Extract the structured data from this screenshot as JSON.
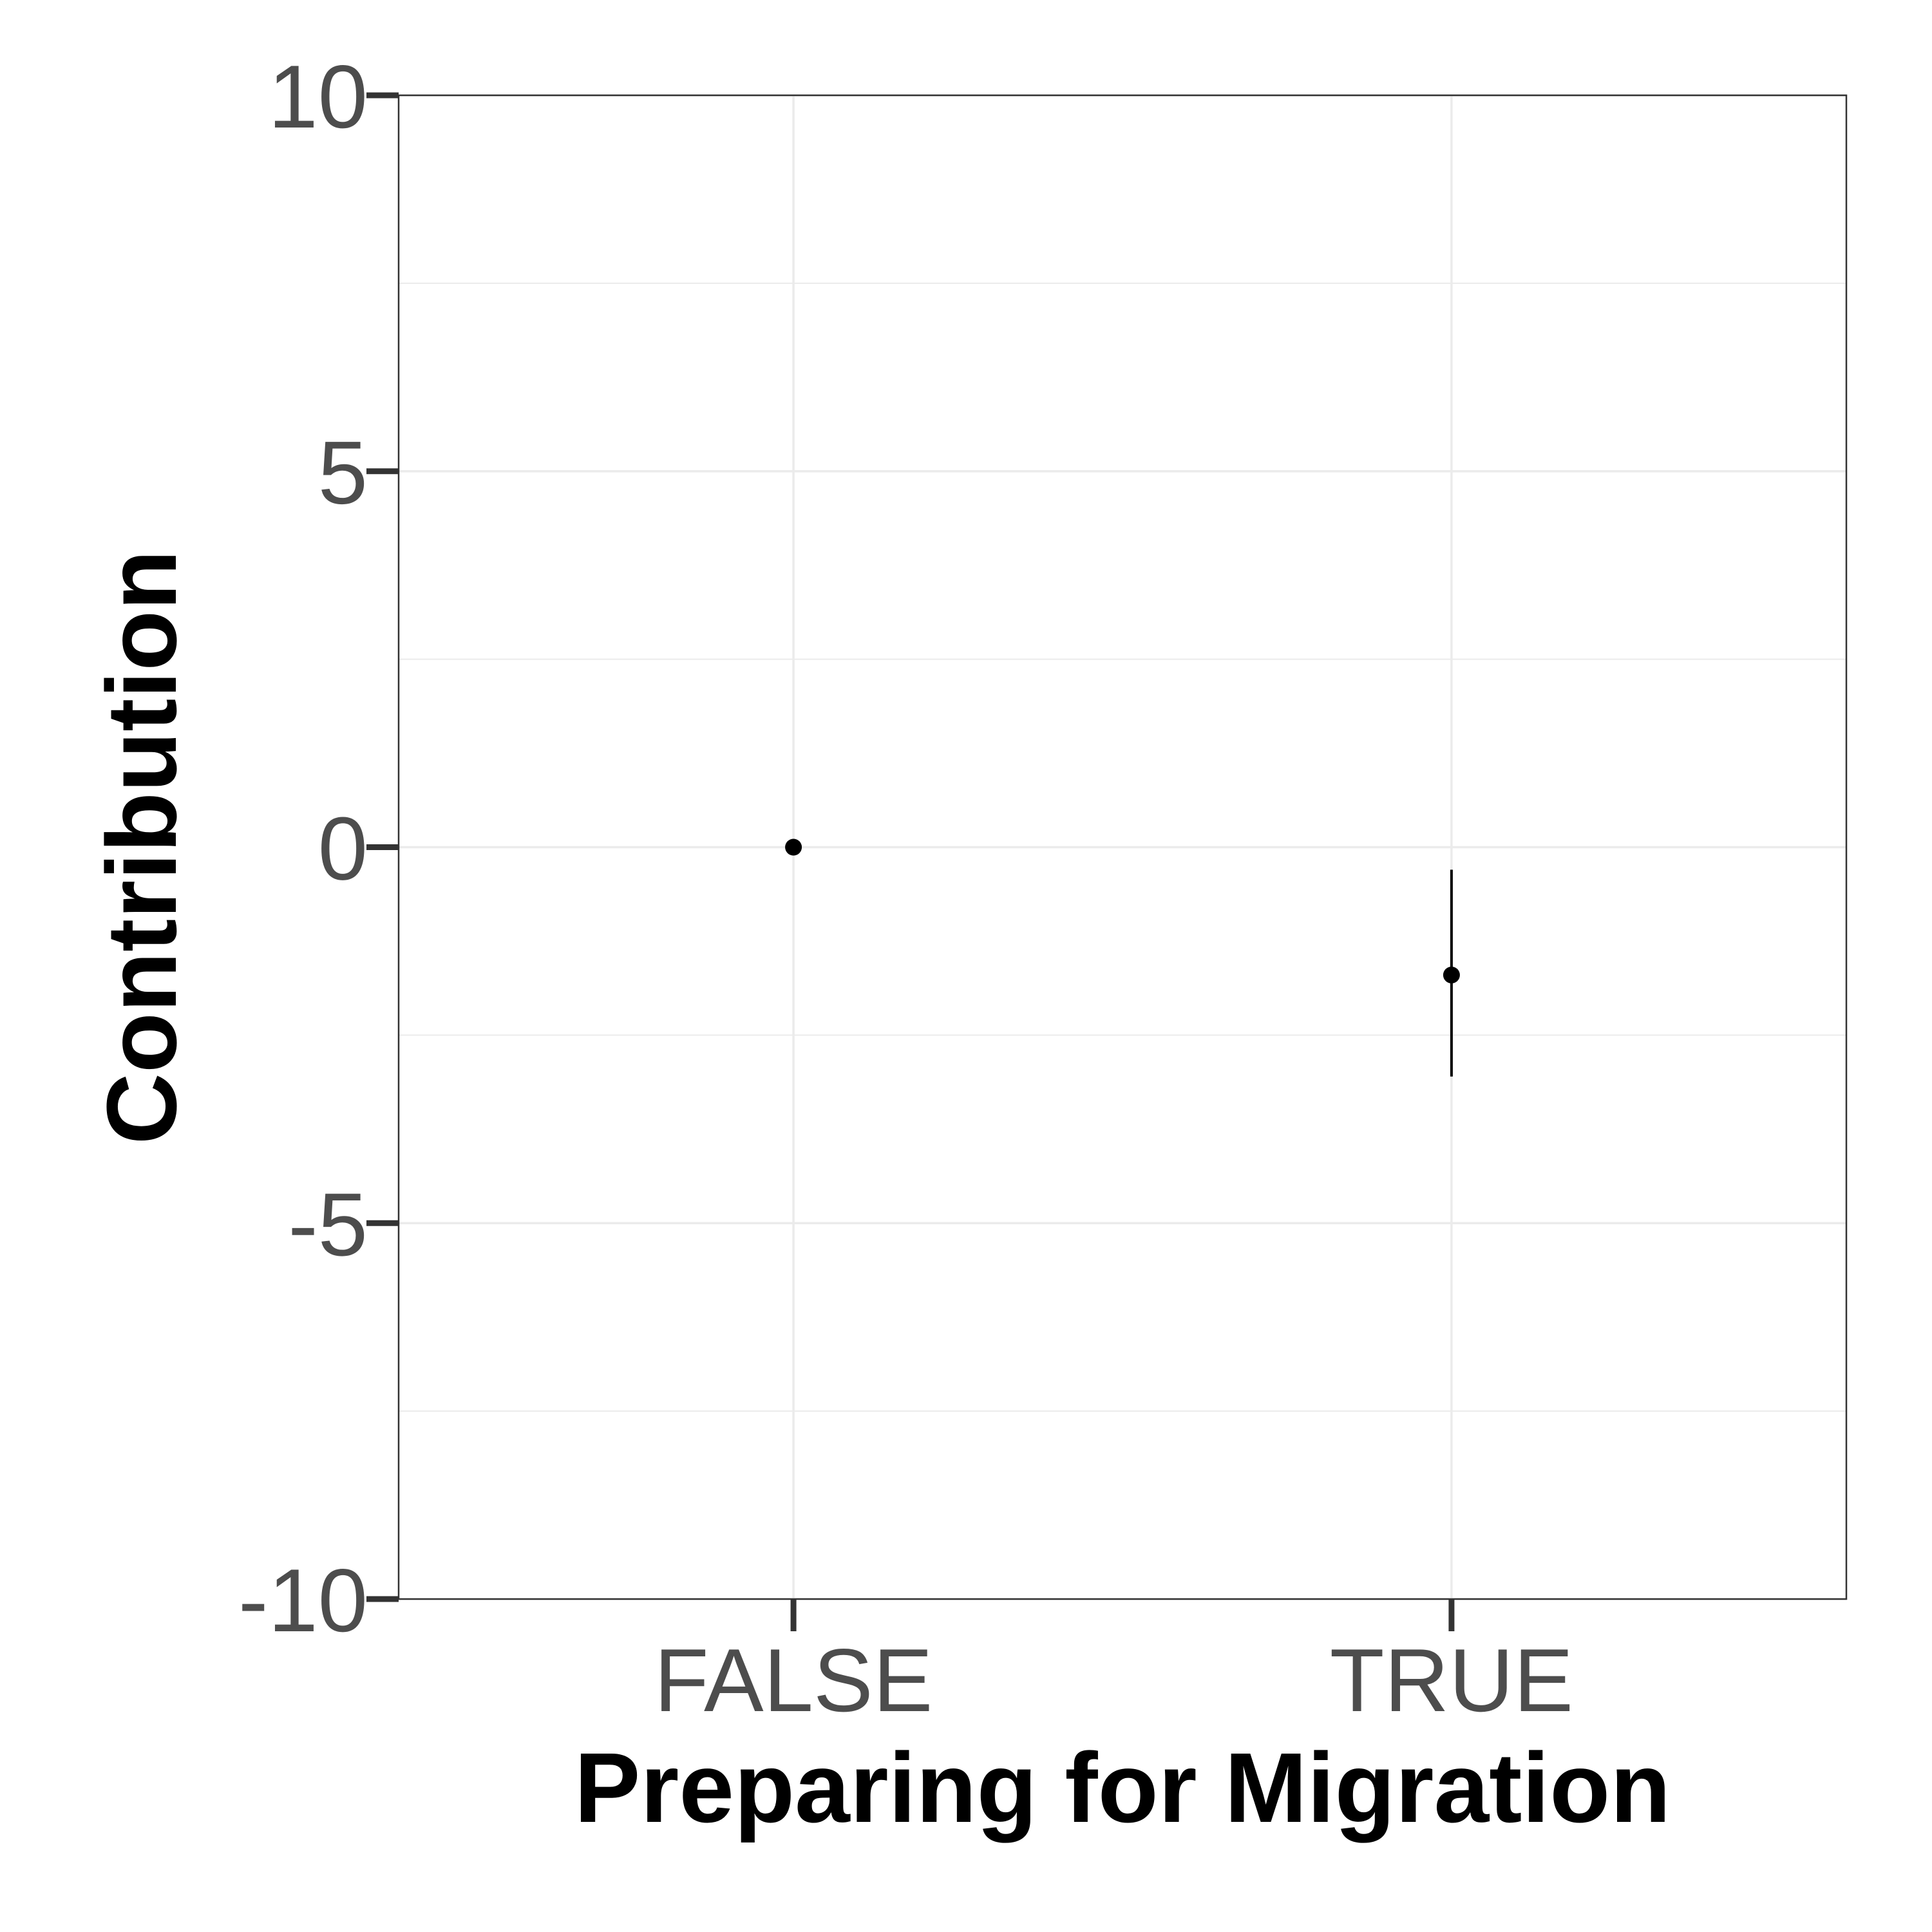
{
  "chart_data": {
    "type": "scatter",
    "title": "",
    "xlabel": "Preparing for Migration",
    "ylabel": "Contribution",
    "categories": [
      "FALSE",
      "TRUE"
    ],
    "points": [
      {
        "x": "FALSE",
        "y": 0.0,
        "lower": 0.0,
        "upper": 0.0
      },
      {
        "x": "TRUE",
        "y": -1.7,
        "lower": -3.05,
        "upper": -0.3
      }
    ],
    "ylim": [
      -10,
      10
    ],
    "yticks": [
      -10,
      -5,
      0,
      5,
      10
    ],
    "ytick_labels": [
      "-10",
      "-5",
      "0",
      "5",
      "10"
    ],
    "grid": true,
    "legend": "none",
    "colors": {
      "point": "#000000",
      "grid": "#ebebeb",
      "panel_border": "#333333",
      "tick_text": "#4d4d4d"
    }
  }
}
